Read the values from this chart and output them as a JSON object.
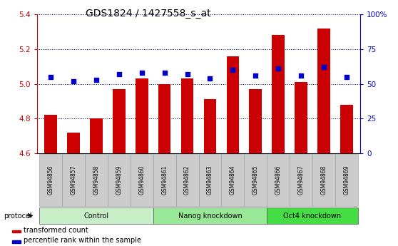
{
  "title": "GDS1824 / 1427558_s_at",
  "samples": [
    "GSM94856",
    "GSM94857",
    "GSM94858",
    "GSM94859",
    "GSM94860",
    "GSM94861",
    "GSM94862",
    "GSM94863",
    "GSM94864",
    "GSM94865",
    "GSM94866",
    "GSM94867",
    "GSM94868",
    "GSM94869"
  ],
  "transformed_count": [
    4.82,
    4.72,
    4.8,
    4.97,
    5.03,
    5.0,
    5.03,
    4.91,
    5.16,
    4.97,
    5.28,
    5.01,
    5.32,
    4.88
  ],
  "percentile_rank": [
    55,
    52,
    53,
    57,
    58,
    58,
    57,
    54,
    60,
    56,
    61,
    56,
    62,
    55
  ],
  "groups": [
    {
      "label": "Control",
      "start": 0,
      "end": 4,
      "color": "#c8eec8"
    },
    {
      "label": "Nanog knockdown",
      "start": 5,
      "end": 9,
      "color": "#98e898"
    },
    {
      "label": "Oct4 knockdown",
      "start": 10,
      "end": 13,
      "color": "#44dd44"
    }
  ],
  "ylim_left": [
    4.6,
    5.4
  ],
  "ylim_right": [
    0,
    100
  ],
  "yticks_left": [
    4.6,
    4.8,
    5.0,
    5.2,
    5.4
  ],
  "yticks_right": [
    0,
    25,
    50,
    75,
    100
  ],
  "bar_color": "#cc0000",
  "dot_color": "#0000cc",
  "bar_bottom": 4.6,
  "tick_bg_color": "#d0d0d0",
  "tick_border_color": "#888888",
  "title_fontsize": 10,
  "bar_width": 0.55
}
